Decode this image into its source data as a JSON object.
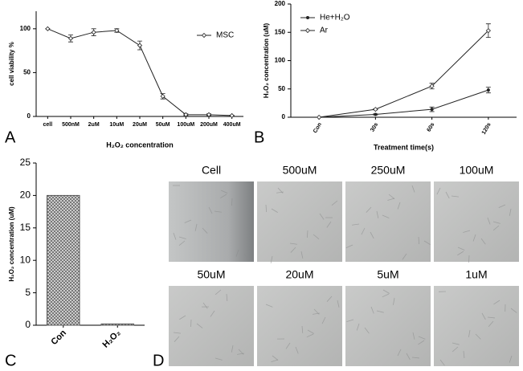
{
  "panel_labels": [
    "A",
    "B",
    "C",
    "D"
  ],
  "chart_data": [
    {
      "type": "line",
      "categories": [
        "cell",
        "500nM",
        "2uM",
        "10uM",
        "20uM",
        "50uM",
        "100uM",
        "200uM",
        "400uM"
      ],
      "series": [
        {
          "name": "MSC",
          "color": "#222222",
          "marker": "open",
          "values": [
            100,
            89,
            96,
            98,
            81,
            23,
            2,
            2,
            1
          ],
          "errors": [
            0,
            4,
            4,
            2,
            5,
            3,
            1,
            1,
            0.5
          ]
        }
      ],
      "ylim": [
        0,
        120
      ],
      "yticks": [
        0,
        50,
        100
      ],
      "y_label": "cell viability %",
      "x_label": "H₂O₂ concentration",
      "legend": "upper right"
    },
    {
      "type": "line",
      "categories": [
        "Con",
        "30s",
        "60s",
        "120s"
      ],
      "series": [
        {
          "name": "He+H₂O",
          "color": "#222222",
          "marker": "filled",
          "values": [
            0,
            5,
            14,
            48
          ],
          "errors": [
            0,
            1,
            4,
            5
          ]
        },
        {
          "name": "Ar",
          "color": "#222222",
          "marker": "open",
          "values": [
            0,
            14,
            55,
            153
          ],
          "errors": [
            0,
            1,
            5,
            12
          ]
        }
      ],
      "ylim": [
        0,
        200
      ],
      "yticks": [
        0,
        50,
        100,
        150,
        200
      ],
      "y_label": "H₂O₂ concentration (uM)",
      "x_label": "Treatment time(s)",
      "legend": "upper left"
    },
    {
      "type": "bar",
      "categories": [
        "Con",
        "H₂O₂"
      ],
      "values": [
        20,
        0.2
      ],
      "color": "#555555",
      "ylim": [
        0,
        25
      ],
      "yticks": [
        0,
        5,
        10,
        15,
        20,
        25
      ],
      "y_label": "H₂O₂ concentration (uM)"
    }
  ],
  "images": {
    "labels": [
      "Cell",
      "500uM",
      "250uM",
      "100uM",
      "50uM",
      "20uM",
      "5uM",
      "1uM"
    ]
  }
}
